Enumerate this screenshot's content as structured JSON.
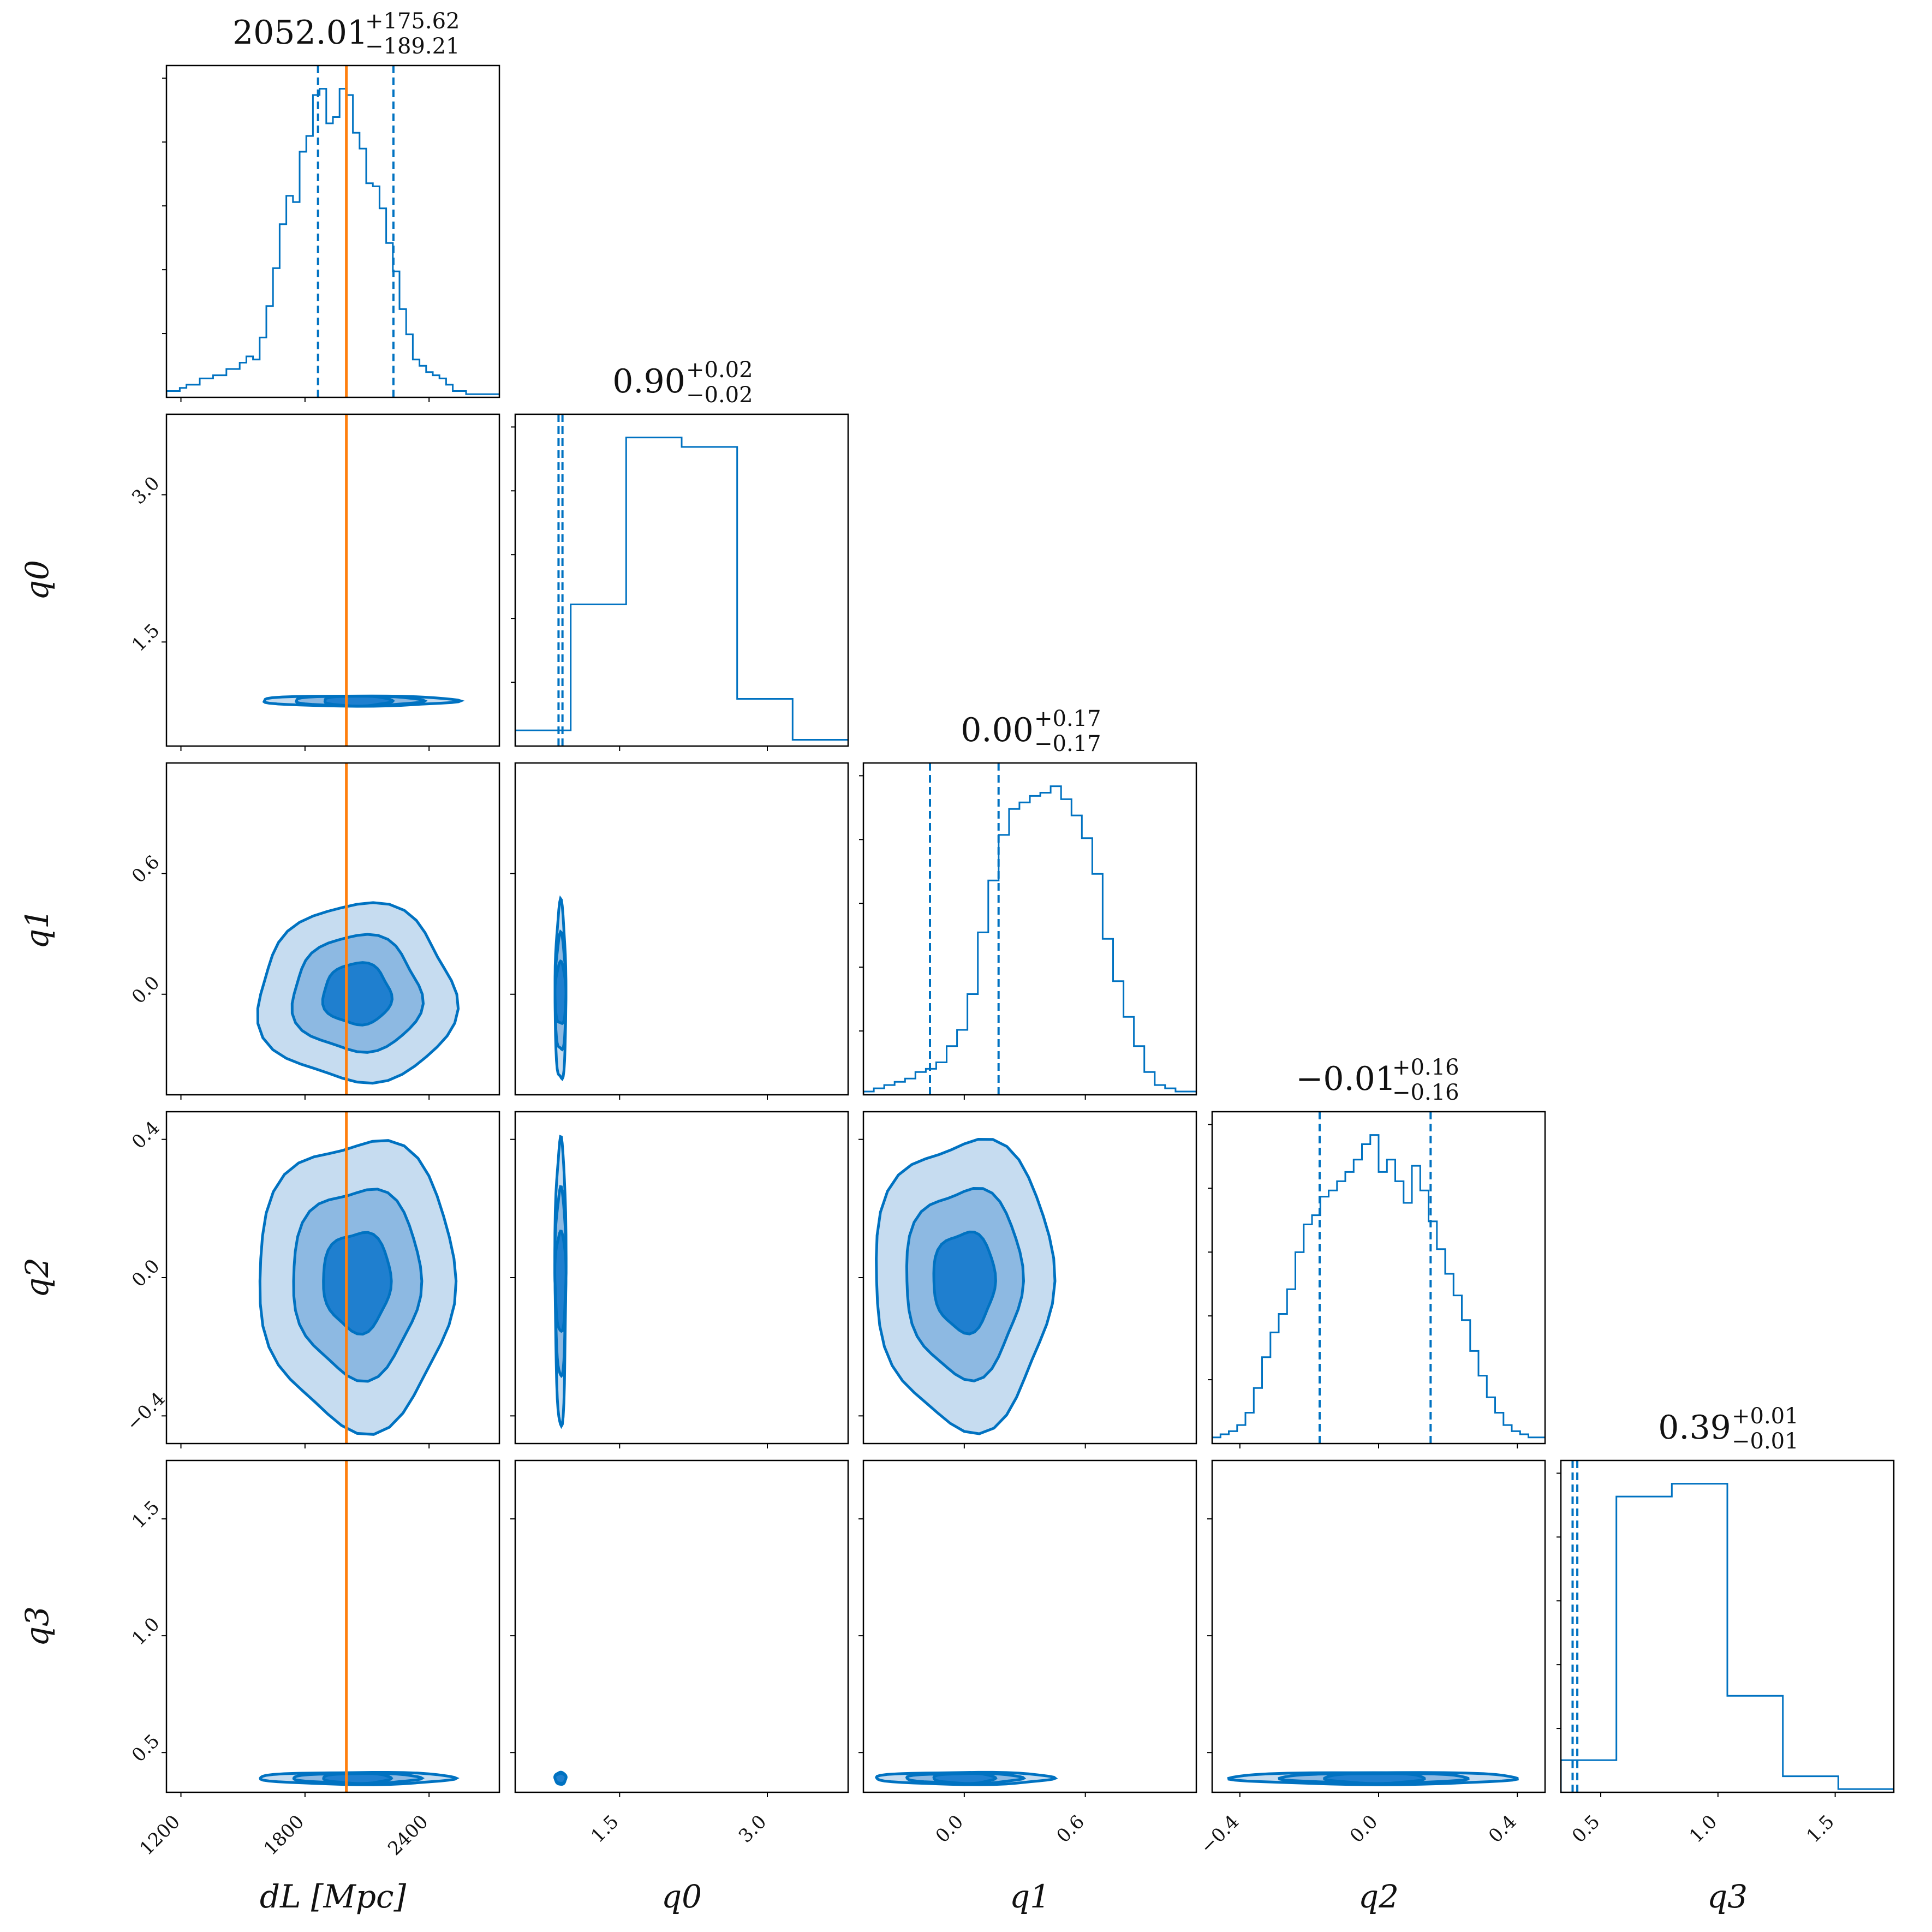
{
  "chart_data": {
    "type": "corner",
    "colors": {
      "posterior": "#0072c1",
      "truth": "#ff7f0e"
    },
    "params": [
      {
        "id": "dL",
        "label": "d_L [Mpc]",
        "range": [
          1130,
          2740
        ],
        "ticks": [
          1200,
          1800,
          2400
        ],
        "median": 2052.01,
        "q16": 1862.8,
        "q84": 2227.63,
        "title": "2052.01",
        "plus": "+175.62",
        "minus": "−189.21",
        "hist": [
          0.02,
          0.02,
          0.03,
          0.04,
          0.04,
          0.06,
          0.06,
          0.07,
          0.07,
          0.09,
          0.09,
          0.11,
          0.13,
          0.12,
          0.19,
          0.29,
          0.41,
          0.55,
          0.64,
          0.62,
          0.78,
          0.83,
          0.96,
          0.98,
          0.87,
          0.89,
          0.98,
          0.96,
          0.84,
          0.79,
          0.68,
          0.67,
          0.6,
          0.49,
          0.4,
          0.28,
          0.2,
          0.12,
          0.1,
          0.08,
          0.07,
          0.06,
          0.04,
          0.02,
          0.02,
          0.01,
          0.01,
          0.01,
          0.01,
          0.01
        ],
        "truth": 2000
      },
      {
        "id": "q0",
        "label": "q_0",
        "range": [
          0.44,
          3.82
        ],
        "ticks": [
          1.5,
          3.0
        ],
        "median": 0.9,
        "q16": 0.88,
        "q84": 0.92,
        "title": "0.90",
        "plus": "+0.02",
        "minus": "−0.02",
        "hist": [
          0.05,
          0.45,
          0.98,
          0.95,
          0.15,
          0.02
        ]
      },
      {
        "id": "q1",
        "label": "q_1",
        "range": [
          -0.5,
          1.15
        ],
        "ticks": [
          0.0,
          0.6
        ],
        "median": 0.0,
        "q16": -0.17,
        "q84": 0.17,
        "title": "0.00",
        "plus": "+0.17",
        "minus": "−0.17",
        "hist": [
          0.01,
          0.02,
          0.03,
          0.04,
          0.05,
          0.07,
          0.08,
          0.1,
          0.15,
          0.2,
          0.31,
          0.5,
          0.66,
          0.8,
          0.88,
          0.9,
          0.92,
          0.93,
          0.95,
          0.91,
          0.86,
          0.79,
          0.68,
          0.48,
          0.35,
          0.24,
          0.15,
          0.07,
          0.03,
          0.02,
          0.01,
          0.01
        ]
      },
      {
        "id": "q2",
        "label": "q_2",
        "range": [
          -0.48,
          0.48
        ],
        "ticks": [
          -0.4,
          0.0,
          0.4
        ],
        "median": -0.01,
        "q16": -0.17,
        "q84": 0.15,
        "title": "−0.01",
        "plus": "+0.16",
        "minus": "−0.16",
        "hist": [
          0.02,
          0.03,
          0.04,
          0.06,
          0.1,
          0.18,
          0.28,
          0.36,
          0.42,
          0.5,
          0.62,
          0.71,
          0.74,
          0.8,
          0.82,
          0.85,
          0.88,
          0.92,
          0.97,
          1.0,
          0.88,
          0.92,
          0.85,
          0.78,
          0.9,
          0.82,
          0.72,
          0.63,
          0.55,
          0.48,
          0.4,
          0.3,
          0.22,
          0.15,
          0.1,
          0.06,
          0.04,
          0.03,
          0.02,
          0.02
        ]
      },
      {
        "id": "q3",
        "label": "q_3",
        "range": [
          0.33,
          1.75
        ],
        "ticks": [
          0.5,
          1.0,
          1.5
        ],
        "median": 0.39,
        "q16": 0.38,
        "q84": 0.4,
        "title": "0.39",
        "plus": "+0.01",
        "minus": "−0.01",
        "hist": [
          0.1,
          0.92,
          0.96,
          0.3,
          0.05,
          0.01
        ]
      }
    ],
    "grid": false
  }
}
